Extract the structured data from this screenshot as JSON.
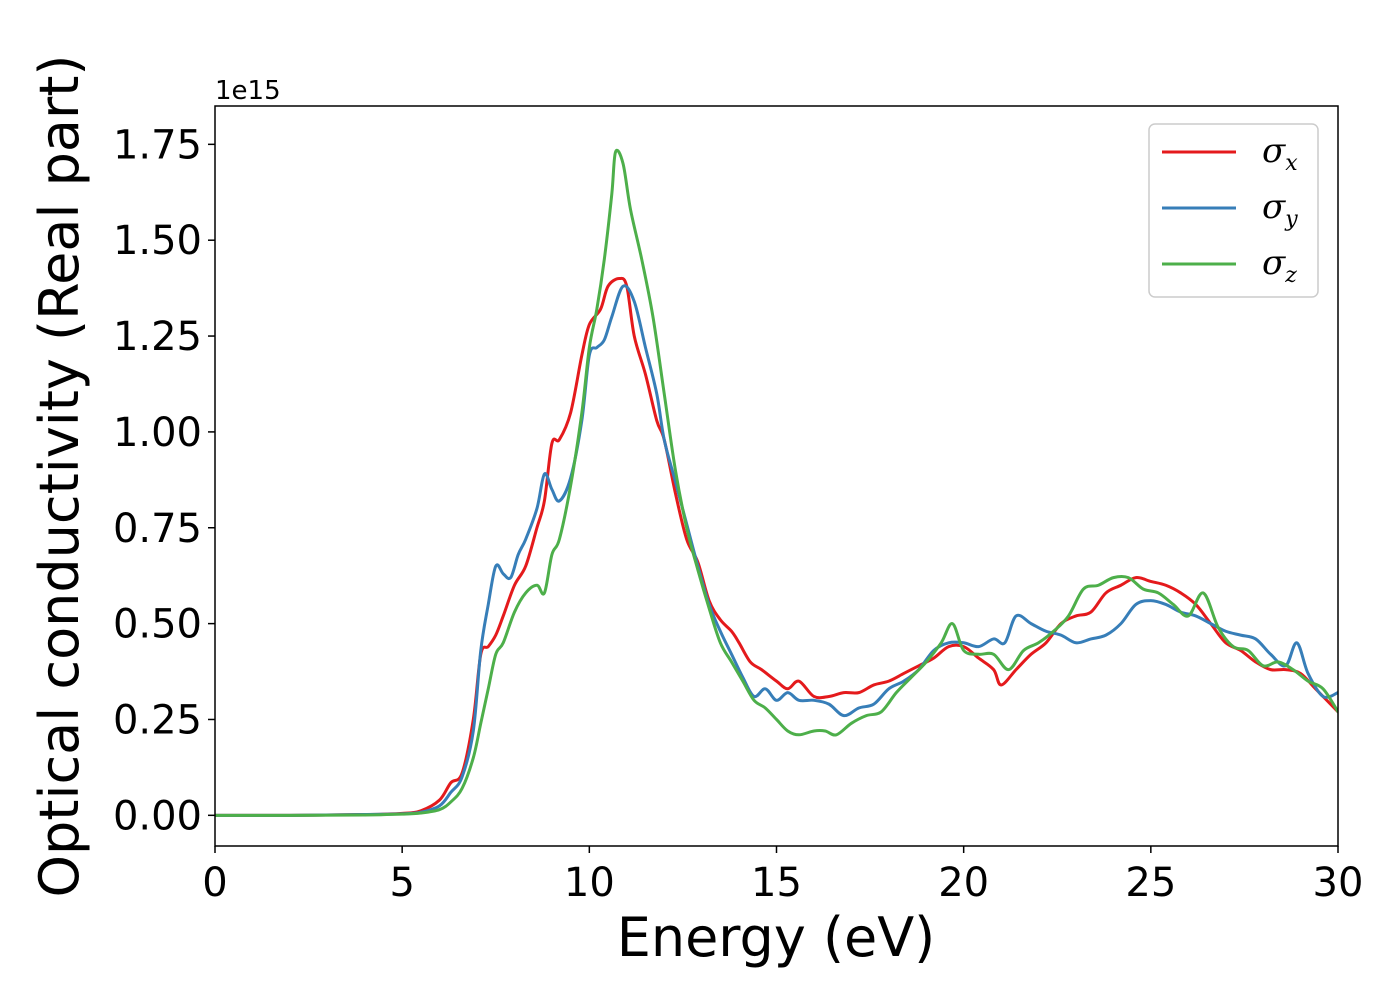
{
  "chart_data": {
    "type": "line",
    "title": "",
    "xlabel": "Energy (eV)",
    "ylabel": "Optical conductivity (Real part)",
    "y_offset_label": "1e15",
    "xlim": [
      0,
      30
    ],
    "ylim": [
      -0.08,
      1.85
    ],
    "x_ticks": [
      0,
      5,
      10,
      15,
      20,
      25,
      30
    ],
    "x_tick_labels": [
      "0",
      "5",
      "10",
      "15",
      "20",
      "25",
      "30"
    ],
    "y_ticks": [
      0.0,
      0.25,
      0.5,
      0.75,
      1.0,
      1.25,
      1.5,
      1.75
    ],
    "y_tick_labels": [
      "0.00",
      "0.25",
      "0.50",
      "0.75",
      "1.00",
      "1.25",
      "1.50",
      "1.75"
    ],
    "grid": false,
    "legend_position": "top-right",
    "series": [
      {
        "name": "σx",
        "symbol": "σ",
        "subscript": "x",
        "color": "#e41a1c",
        "x": [
          0,
          2,
          4,
          5,
          5.5,
          6,
          6.3,
          6.6,
          6.9,
          7.1,
          7.3,
          7.5,
          7.7,
          8,
          8.3,
          8.6,
          8.8,
          9,
          9.2,
          9.5,
          9.8,
          10,
          10.3,
          10.5,
          10.8,
          11,
          11.2,
          11.5,
          11.8,
          12,
          12.3,
          12.6,
          12.9,
          13.2,
          13.5,
          13.8,
          14,
          14.3,
          14.6,
          15,
          15.3,
          15.6,
          16,
          16.4,
          16.8,
          17.2,
          17.6,
          18,
          18.4,
          18.8,
          19.2,
          19.6,
          20,
          20.4,
          20.8,
          21,
          21.4,
          21.8,
          22.2,
          22.6,
          23,
          23.4,
          23.8,
          24.2,
          24.6,
          25,
          25.4,
          25.8,
          26.2,
          26.6,
          27,
          27.4,
          27.8,
          28.2,
          28.6,
          29,
          29.4,
          30
        ],
        "y": [
          0,
          0,
          0.002,
          0.005,
          0.012,
          0.04,
          0.085,
          0.11,
          0.25,
          0.42,
          0.44,
          0.47,
          0.52,
          0.6,
          0.65,
          0.75,
          0.82,
          0.97,
          0.98,
          1.05,
          1.2,
          1.28,
          1.32,
          1.38,
          1.4,
          1.38,
          1.25,
          1.15,
          1.03,
          0.98,
          0.84,
          0.72,
          0.66,
          0.56,
          0.51,
          0.48,
          0.45,
          0.4,
          0.38,
          0.35,
          0.33,
          0.35,
          0.31,
          0.31,
          0.32,
          0.32,
          0.34,
          0.35,
          0.37,
          0.39,
          0.41,
          0.44,
          0.44,
          0.41,
          0.38,
          0.34,
          0.38,
          0.42,
          0.45,
          0.5,
          0.52,
          0.53,
          0.58,
          0.6,
          0.62,
          0.61,
          0.6,
          0.58,
          0.55,
          0.5,
          0.45,
          0.43,
          0.4,
          0.38,
          0.38,
          0.37,
          0.33,
          0.27
        ]
      },
      {
        "name": "σy",
        "symbol": "σ",
        "subscript": "y",
        "color": "#377eb8",
        "x": [
          0,
          2,
          4,
          5,
          5.5,
          6,
          6.3,
          6.6,
          6.9,
          7.1,
          7.3,
          7.5,
          7.7,
          7.9,
          8.1,
          8.3,
          8.6,
          8.8,
          9,
          9.2,
          9.5,
          9.8,
          10,
          10.2,
          10.4,
          10.6,
          10.9,
          11.2,
          11.5,
          11.8,
          12,
          12.3,
          12.6,
          12.9,
          13.2,
          13.5,
          13.8,
          14.1,
          14.4,
          14.7,
          15,
          15.3,
          15.6,
          16,
          16.4,
          16.8,
          17.2,
          17.6,
          18,
          18.4,
          18.8,
          19.2,
          19.6,
          20,
          20.4,
          20.8,
          21.1,
          21.4,
          21.8,
          22.2,
          22.6,
          23,
          23.4,
          23.8,
          24.2,
          24.6,
          25,
          25.4,
          25.8,
          26.2,
          26.6,
          27,
          27.4,
          27.8,
          28.2,
          28.6,
          28.9,
          29.2,
          29.6,
          30
        ],
        "y": [
          0,
          0,
          0.002,
          0.004,
          0.008,
          0.025,
          0.06,
          0.1,
          0.22,
          0.43,
          0.55,
          0.65,
          0.63,
          0.62,
          0.68,
          0.72,
          0.8,
          0.89,
          0.85,
          0.82,
          0.88,
          1.03,
          1.2,
          1.22,
          1.24,
          1.3,
          1.38,
          1.34,
          1.22,
          1.1,
          0.98,
          0.87,
          0.76,
          0.65,
          0.55,
          0.48,
          0.42,
          0.36,
          0.31,
          0.33,
          0.3,
          0.32,
          0.3,
          0.3,
          0.29,
          0.26,
          0.28,
          0.29,
          0.33,
          0.35,
          0.38,
          0.43,
          0.45,
          0.45,
          0.44,
          0.46,
          0.45,
          0.52,
          0.5,
          0.48,
          0.47,
          0.45,
          0.46,
          0.47,
          0.5,
          0.55,
          0.56,
          0.55,
          0.53,
          0.52,
          0.5,
          0.48,
          0.47,
          0.46,
          0.42,
          0.39,
          0.45,
          0.37,
          0.31,
          0.32
        ]
      },
      {
        "name": "σz",
        "symbol": "σ",
        "subscript": "z",
        "color": "#4daf4a",
        "x": [
          0,
          2,
          4,
          5,
          5.5,
          6,
          6.3,
          6.6,
          6.9,
          7.1,
          7.3,
          7.5,
          7.7,
          8,
          8.3,
          8.6,
          8.8,
          9,
          9.2,
          9.5,
          9.8,
          10,
          10.2,
          10.4,
          10.6,
          10.7,
          10.9,
          11.1,
          11.4,
          11.7,
          12,
          12.3,
          12.6,
          12.9,
          13.2,
          13.5,
          13.8,
          14.1,
          14.4,
          14.7,
          15,
          15.3,
          15.6,
          16,
          16.3,
          16.6,
          17,
          17.4,
          17.8,
          18.2,
          18.6,
          19,
          19.4,
          19.7,
          20,
          20.4,
          20.8,
          21.2,
          21.6,
          22,
          22.4,
          22.8,
          23.2,
          23.6,
          24,
          24.4,
          24.8,
          25.2,
          25.6,
          26,
          26.4,
          26.8,
          27.2,
          27.6,
          28,
          28.4,
          28.8,
          29.2,
          29.6,
          30
        ],
        "y": [
          0,
          0,
          0.001,
          0.003,
          0.006,
          0.015,
          0.035,
          0.07,
          0.15,
          0.24,
          0.33,
          0.42,
          0.45,
          0.53,
          0.58,
          0.6,
          0.58,
          0.68,
          0.72,
          0.86,
          1.05,
          1.22,
          1.32,
          1.45,
          1.62,
          1.73,
          1.7,
          1.58,
          1.45,
          1.3,
          1.1,
          0.9,
          0.75,
          0.64,
          0.54,
          0.45,
          0.4,
          0.35,
          0.3,
          0.28,
          0.25,
          0.22,
          0.21,
          0.22,
          0.22,
          0.21,
          0.24,
          0.26,
          0.27,
          0.32,
          0.36,
          0.4,
          0.45,
          0.5,
          0.43,
          0.42,
          0.42,
          0.38,
          0.43,
          0.45,
          0.48,
          0.52,
          0.59,
          0.6,
          0.62,
          0.62,
          0.59,
          0.58,
          0.55,
          0.52,
          0.58,
          0.49,
          0.44,
          0.43,
          0.39,
          0.4,
          0.38,
          0.35,
          0.33,
          0.27
        ]
      }
    ]
  }
}
